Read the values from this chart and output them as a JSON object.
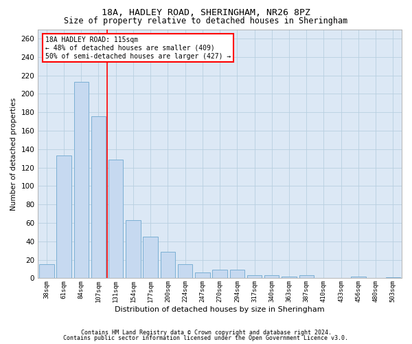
{
  "title1": "18A, HADLEY ROAD, SHERINGHAM, NR26 8PZ",
  "title2": "Size of property relative to detached houses in Sheringham",
  "xlabel": "Distribution of detached houses by size in Sheringham",
  "ylabel": "Number of detached properties",
  "categories": [
    "38sqm",
    "61sqm",
    "84sqm",
    "107sqm",
    "131sqm",
    "154sqm",
    "177sqm",
    "200sqm",
    "224sqm",
    "247sqm",
    "270sqm",
    "294sqm",
    "317sqm",
    "340sqm",
    "363sqm",
    "387sqm",
    "410sqm",
    "433sqm",
    "456sqm",
    "480sqm",
    "503sqm"
  ],
  "values": [
    15,
    133,
    213,
    176,
    129,
    63,
    45,
    29,
    15,
    6,
    9,
    9,
    3,
    3,
    2,
    3,
    0,
    0,
    2,
    0,
    1
  ],
  "bar_color": "#c6d9f0",
  "bar_edge_color": "#7bafd4",
  "red_line_x": 3.5,
  "annotation_text": "18A HADLEY ROAD: 115sqm\n← 48% of detached houses are smaller (409)\n50% of semi-detached houses are larger (427) →",
  "annotation_box_color": "white",
  "annotation_box_edge_color": "red",
  "ylim": [
    0,
    270
  ],
  "yticks": [
    0,
    20,
    40,
    60,
    80,
    100,
    120,
    140,
    160,
    180,
    200,
    220,
    240,
    260
  ],
  "grid_color": "#b8cfe0",
  "background_color": "#dce8f5",
  "footer1": "Contains HM Land Registry data © Crown copyright and database right 2024.",
  "footer2": "Contains public sector information licensed under the Open Government Licence v3.0."
}
